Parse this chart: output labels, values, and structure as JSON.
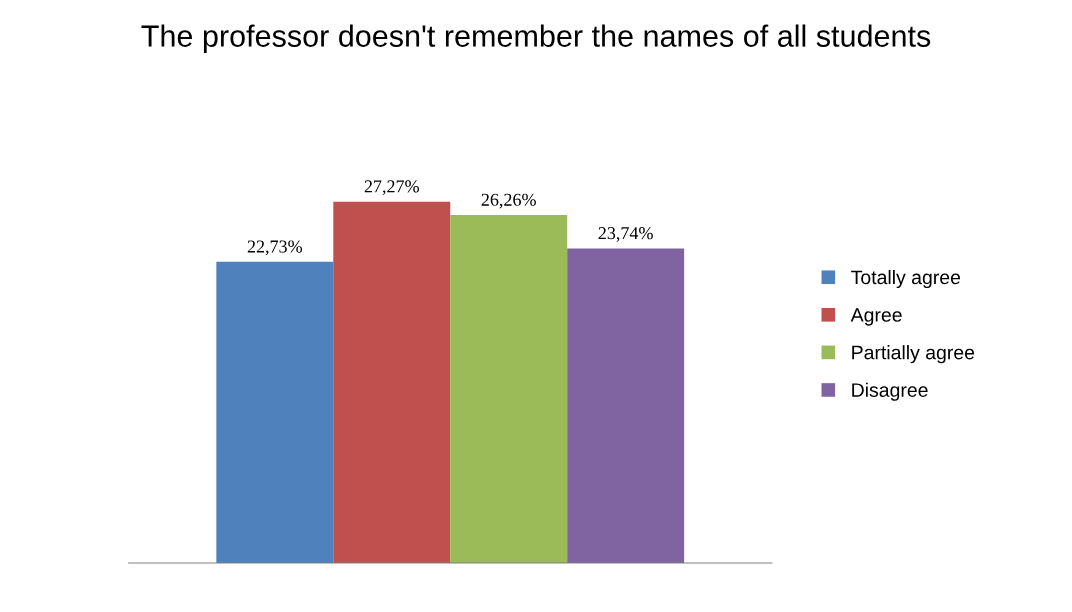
{
  "chart_data": {
    "type": "bar",
    "title": "The professor doesn't remember the names of all students",
    "categories": [
      null
    ],
    "series": [
      {
        "name": "Totally agree",
        "color": "#4f81bd",
        "values": [
          22.73
        ],
        "value_labels": [
          "22,73%"
        ]
      },
      {
        "name": "Agree",
        "color": "#c0504d",
        "values": [
          27.27
        ],
        "value_labels": [
          "27,27%"
        ]
      },
      {
        "name": "Partially agree",
        "color": "#9bbb59",
        "values": [
          26.26
        ],
        "value_labels": [
          "26,26%"
        ]
      },
      {
        "name": "Disagree",
        "color": "#8064a2",
        "values": [
          23.74
        ],
        "value_labels": [
          "23,74%"
        ]
      }
    ],
    "legend": "right",
    "grid": false,
    "tick_labels": false
  }
}
